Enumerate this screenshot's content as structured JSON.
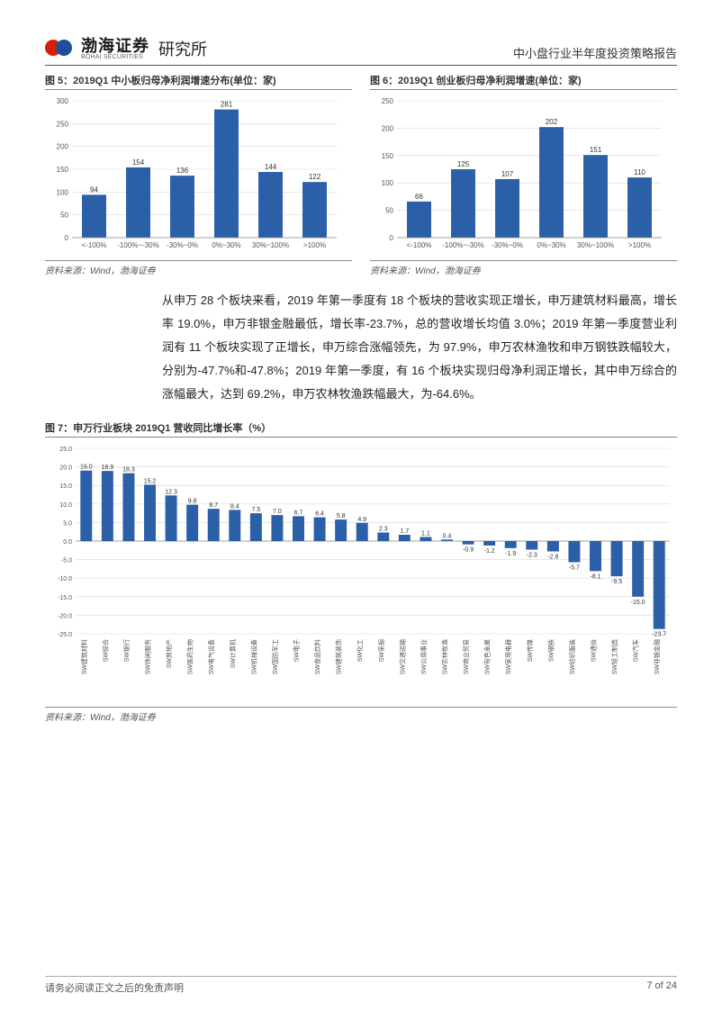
{
  "header": {
    "logo_cn": "渤海证券",
    "logo_en": "BOHAI SECURITIES",
    "logo_suffix": "研究所",
    "doc_title": "中小盘行业半年度投资策略报告"
  },
  "chart5": {
    "type": "bar",
    "title": "图 5：2019Q1 中小板归母净利润增速分布(单位：家)",
    "categories": [
      "<-100%",
      "-100%~-30%",
      "-30%~0%",
      "0%~30%",
      "30%~100%",
      ">100%"
    ],
    "values": [
      94,
      154,
      136,
      281,
      144,
      122
    ],
    "ylim": [
      0,
      300
    ],
    "ytick_step": 50,
    "bar_color": "#2b5fa8",
    "grid_color": "#d9d9d9",
    "axis_label_fontsize": 8,
    "value_label_fontsize": 8,
    "background_color": "#ffffff",
    "source": "资料来源：Wind，渤海证券"
  },
  "chart6": {
    "type": "bar",
    "title": "图 6：2019Q1 创业板归母净利润增速(单位：家)",
    "categories": [
      "<-100%",
      "-100%~-30%",
      "-30%~0%",
      "0%~30%",
      "30%~100%",
      ">100%"
    ],
    "values": [
      66,
      125,
      107,
      202,
      151,
      110
    ],
    "ylim": [
      0,
      250
    ],
    "ytick_step": 50,
    "bar_color": "#2b5fa8",
    "grid_color": "#d9d9d9",
    "axis_label_fontsize": 8,
    "value_label_fontsize": 8,
    "background_color": "#ffffff",
    "source": "资料来源：Wind，渤海证券"
  },
  "body_paragraph": "从申万 28 个板块来看，2019 年第一季度有 18 个板块的营收实现正增长，申万建筑材料最高，增长率 19.0%，申万非银金融最低，增长率-23.7%，总的营收增长均值 3.0%；2019 年第一季度营业利润有 11 个板块实现了正增长，申万综合涨幅领先，为 97.9%，申万农林渔牧和申万钢铁跌幅较大，分别为-47.7%和-47.8%；2019 年第一季度，有 16 个板块实现归母净利润正增长，其中申万综合的涨幅最大，达到 69.2%，申万农林牧渔跌幅最大，为-64.6%。",
  "chart7": {
    "type": "bar",
    "title": "图 7：申万行业板块 2019Q1 营收同比增长率（%）",
    "categories": [
      "SW建筑材料",
      "SW综合",
      "SW银行",
      "SW休闲服务",
      "SW房地产",
      "SW医药生物",
      "SW电气设备",
      "SW计算机",
      "SW机械设备",
      "SW国防军工",
      "SW电子",
      "SW食品饮料",
      "SW建筑装饰",
      "SW化工",
      "SW采掘",
      "SW交通运输",
      "SW公用事业",
      "SW农林牧渔",
      "SW商业贸易",
      "SW有色金属",
      "SW家用电器",
      "SW传媒",
      "SW钢铁",
      "SW纺织服装",
      "SW通信",
      "SW轻工制造",
      "SW汽车",
      "SW非银金融"
    ],
    "values": [
      19.0,
      18.9,
      18.3,
      15.2,
      12.3,
      9.8,
      8.7,
      8.4,
      7.5,
      7.0,
      6.7,
      6.4,
      5.8,
      4.9,
      2.3,
      1.7,
      1.1,
      0.4,
      -0.9,
      -1.2,
      -1.9,
      -2.3,
      -2.8,
      -5.7,
      -8.1,
      -9.5,
      -15.0,
      -23.7
    ],
    "ylim": [
      -25.0,
      25.0
    ],
    "ytick_step": 5.0,
    "bar_color": "#2b5fa8",
    "grid_color": "#d9d9d9",
    "axis_label_fontsize": 7,
    "value_label_fontsize": 7,
    "background_color": "#ffffff",
    "source": "资料来源：Wind，渤海证券"
  },
  "footer": {
    "disclaimer": "请务必阅读正文之后的免责声明",
    "page": "7 of 24"
  }
}
